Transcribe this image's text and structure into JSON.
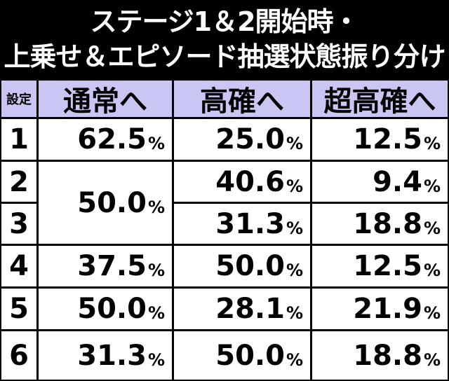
{
  "title": {
    "line1": "ステージ1＆2開始時・",
    "line2": "上乗せ＆エピソード抽選状態振り分け"
  },
  "table": {
    "headers": [
      "設定",
      "通常へ",
      "高確へ",
      "超高確へ"
    ],
    "percent_sign": "%",
    "rows": [
      {
        "setting": "1",
        "normal": "62.5",
        "high": "25.0",
        "super": "12.5"
      },
      {
        "setting": "2",
        "normal": "50.0",
        "high": "40.6",
        "super": "9.4"
      },
      {
        "setting": "3",
        "normal": "50.0",
        "high": "31.3",
        "super": "18.8"
      },
      {
        "setting": "4",
        "normal": "37.5",
        "high": "50.0",
        "super": "12.5"
      },
      {
        "setting": "5",
        "normal": "50.0",
        "high": "28.1",
        "super": "21.9"
      },
      {
        "setting": "6",
        "normal": "31.3",
        "high": "50.0",
        "super": "18.8"
      }
    ]
  },
  "colors": {
    "header_bg": "#c9c6f4",
    "cell_bg": "#ffffff",
    "border": "#000000",
    "title_text": "#ffffff"
  }
}
